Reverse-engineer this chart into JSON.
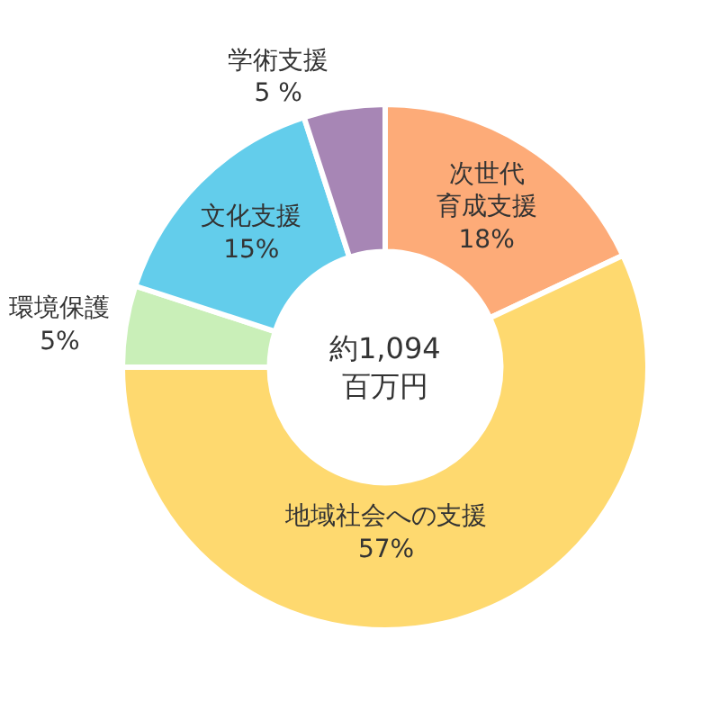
{
  "chart_data": {
    "type": "donut",
    "categories": [
      "次世代育成支援",
      "地域社会への支援",
      "環境保護",
      "文化支援",
      "学術支援"
    ],
    "values": [
      18,
      57,
      5,
      15,
      5
    ],
    "value_labels": [
      "18%",
      "57%",
      "5%",
      "15%",
      "5 %"
    ],
    "colors": [
      "#fdab78",
      "#fed96f",
      "#c9efb8",
      "#63cdeb",
      "#a786b5"
    ],
    "annotations": [
      "約1,094\n百万円"
    ],
    "legend": false
  }
}
